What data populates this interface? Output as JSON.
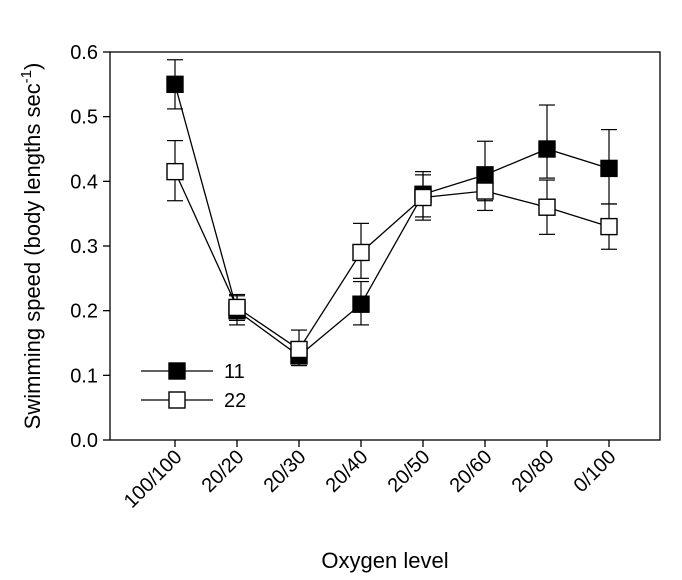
{
  "chart_data": {
    "type": "line",
    "xlabel": "Oxygen level",
    "ylabel_main": "Swimming speed (body lengths sec",
    "ylabel_sup": "-1",
    "ylabel_close": ")",
    "categories": [
      "100/100",
      "20/20",
      "20/30",
      "20/40",
      "20/50",
      "20/60",
      "20/80",
      "0/100"
    ],
    "ylim": [
      0,
      0.6
    ],
    "yticks": [
      "0.0",
      "0.1",
      "0.2",
      "0.3",
      "0.4",
      "0.5",
      "0.6"
    ],
    "legend_position": "bottom-left",
    "series": [
      {
        "name": "11",
        "marker": "filled-square",
        "color": "#000000",
        "values": [
          0.55,
          0.2,
          0.13,
          0.21,
          0.38,
          0.41,
          0.45,
          0.42
        ],
        "err_up": [
          0.038,
          0.025,
          0.012,
          0.035,
          0.035,
          0.052,
          0.068,
          0.06
        ],
        "err_down": [
          0.038,
          0.022,
          0.012,
          0.032,
          0.035,
          0.04,
          0.045,
          0.055
        ]
      },
      {
        "name": "22",
        "marker": "open-square",
        "color": "#000000",
        "values": [
          0.415,
          0.205,
          0.14,
          0.29,
          0.375,
          0.385,
          0.36,
          0.33
        ],
        "err_up": [
          0.048,
          0.018,
          0.03,
          0.045,
          0.035,
          0.03,
          0.042,
          0.035
        ],
        "err_down": [
          0.045,
          0.02,
          0.025,
          0.04,
          0.035,
          0.03,
          0.042,
          0.035
        ]
      }
    ]
  }
}
